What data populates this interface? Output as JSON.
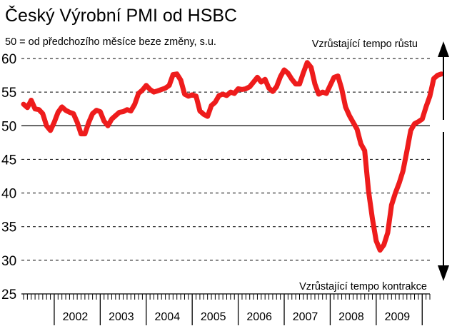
{
  "chart_data": {
    "type": "line",
    "title": "Český Výrobní PMI od HSBC",
    "subtitle": "50 = od předchozího měsíce beze změny, s.u.",
    "annotation_top": "Vzrůstající tempo růstu",
    "annotation_bottom": "Vzrůstající tempo kontrakce",
    "ylim": [
      25,
      60
    ],
    "yticks": [
      "25",
      "30",
      "35",
      "40",
      "45",
      "50",
      "55",
      "60"
    ],
    "reference_line": 50,
    "grid": "dashed horizontal",
    "x_start": "2001-05",
    "x_end": "2010-03",
    "x_labels": [
      "2002",
      "2003",
      "2004",
      "2005",
      "2006",
      "2007",
      "2008",
      "2009"
    ],
    "series": [
      {
        "color": "#ee1c1c",
        "values": [
          53.2,
          52.7,
          53.8,
          52.5,
          52.4,
          51.8,
          50.0,
          49.3,
          50.5,
          52.0,
          52.8,
          52.3,
          52.0,
          51.8,
          50.5,
          48.8,
          48.8,
          50.5,
          51.8,
          52.3,
          52.1,
          50.7,
          50.0,
          51.0,
          51.5,
          52.0,
          52.1,
          52.4,
          52.2,
          53.2,
          54.8,
          55.3,
          56.0,
          55.4,
          55.0,
          55.2,
          55.4,
          55.6,
          56.0,
          57.6,
          57.7,
          56.8,
          54.7,
          54.4,
          54.6,
          54.4,
          52.2,
          51.7,
          51.4,
          53.0,
          53.5,
          54.5,
          54.7,
          54.5,
          55.0,
          54.8,
          55.5,
          55.4,
          55.5,
          55.8,
          56.5,
          57.2,
          56.5,
          56.9,
          55.6,
          55.1,
          55.8,
          57.3,
          58.3,
          57.8,
          56.9,
          56.2,
          56.2,
          57.9,
          59.4,
          58.7,
          56.2,
          54.7,
          55.0,
          54.8,
          56.0,
          57.2,
          57.4,
          55.5,
          52.8,
          51.5,
          50.5,
          49.5,
          47.3,
          46.3,
          40.3,
          36.2,
          32.9,
          31.5,
          32.3,
          34.1,
          38.2,
          40.0,
          41.5,
          43.3,
          46.2,
          49.3,
          50.3,
          50.6,
          51.0,
          52.8,
          54.4,
          57.0,
          57.5,
          57.7
        ]
      }
    ]
  }
}
